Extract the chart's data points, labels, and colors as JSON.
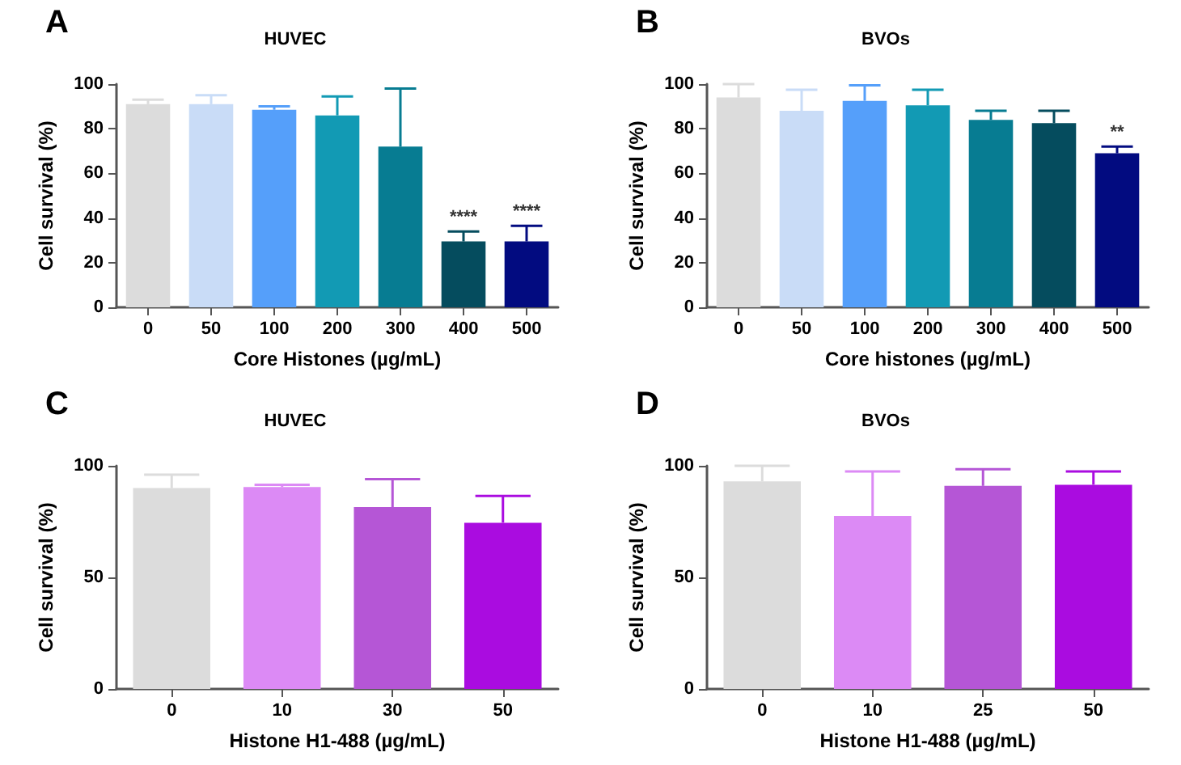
{
  "chart_data": [
    {
      "type": "bar",
      "title": "HUVEC",
      "xlabel": "Core Histones (µg/mL)",
      "ylabel": "Cell survival (%)",
      "categories": [
        "0",
        "50",
        "100",
        "200",
        "300",
        "400",
        "500"
      ],
      "values": [
        91,
        91,
        88.5,
        86,
        72,
        29.5,
        29.5
      ],
      "colors": [
        "#dcdcdc",
        "#c9dcf7",
        "#559ffa",
        "#129ab4",
        "#077c92",
        "#054c5e",
        "#020b80"
      ],
      "errors": [
        [
          91,
          93
        ],
        [
          91,
          95
        ],
        [
          88.5,
          90
        ],
        [
          86,
          94.5
        ],
        [
          72,
          98
        ],
        [
          29.5,
          34
        ],
        [
          29.5,
          36.5
        ]
      ],
      "ylim": [
        0,
        100
      ],
      "yticks": [
        0,
        20,
        40,
        60,
        80,
        100
      ],
      "grid": false,
      "annotations": [
        "A",
        {
          "text": "****",
          "x": "400",
          "y": 34
        },
        {
          "text": "****",
          "x": "500",
          "y": 36.5
        }
      ]
    },
    {
      "type": "bar",
      "title": "BVOs",
      "xlabel": "Core histones (µg/mL)",
      "ylabel": "Cell survival (%)",
      "categories": [
        "0",
        "50",
        "100",
        "200",
        "300",
        "400",
        "500"
      ],
      "values": [
        94,
        88,
        92.5,
        90.5,
        84,
        82.5,
        69
      ],
      "colors": [
        "#dcdcdc",
        "#c9dcf7",
        "#559ffa",
        "#129ab4",
        "#077c92",
        "#054c5e",
        "#020b80"
      ],
      "errors": [
        [
          94,
          100
        ],
        [
          88,
          97.5
        ],
        [
          92.5,
          99.5
        ],
        [
          90.5,
          97.5
        ],
        [
          84,
          88
        ],
        [
          82.5,
          88
        ],
        [
          69,
          72
        ]
      ],
      "ylim": [
        0,
        100
      ],
      "yticks": [
        0,
        20,
        40,
        60,
        80,
        100
      ],
      "grid": false,
      "annotations": [
        "B",
        {
          "text": "**",
          "x": "500",
          "y": 72
        }
      ]
    },
    {
      "type": "bar",
      "title": "HUVEC",
      "xlabel": "Histone H1-488 (µg/mL)",
      "ylabel": "Cell survival (%)",
      "categories": [
        "0",
        "10",
        "30",
        "50"
      ],
      "values": [
        90,
        90.5,
        81.5,
        74.5
      ],
      "colors": [
        "#dcdcdc",
        "#dc8af5",
        "#b556d6",
        "#aa0ce0"
      ],
      "errors": [
        [
          90,
          96
        ],
        [
          90.5,
          91.5
        ],
        [
          81.5,
          94
        ],
        [
          74.5,
          86.5
        ]
      ],
      "ylim": [
        0,
        100
      ],
      "yticks": [
        0,
        50,
        100
      ],
      "grid": false,
      "annotations": [
        "C"
      ]
    },
    {
      "type": "bar",
      "title": "BVOs",
      "xlabel": "Histone H1-488 (µg/mL)",
      "ylabel": "Cell survival (%)",
      "categories": [
        "0",
        "10",
        "25",
        "50"
      ],
      "values": [
        93,
        77.5,
        91,
        91.5
      ],
      "colors": [
        "#dcdcdc",
        "#dc8af5",
        "#b556d6",
        "#aa0ce0"
      ],
      "errors": [
        [
          93,
          100
        ],
        [
          77.5,
          97.5
        ],
        [
          91,
          98.5
        ],
        [
          91.5,
          97.5
        ]
      ],
      "ylim": [
        0,
        100
      ],
      "yticks": [
        0,
        50,
        100
      ],
      "grid": false,
      "annotations": [
        "D"
      ]
    }
  ]
}
